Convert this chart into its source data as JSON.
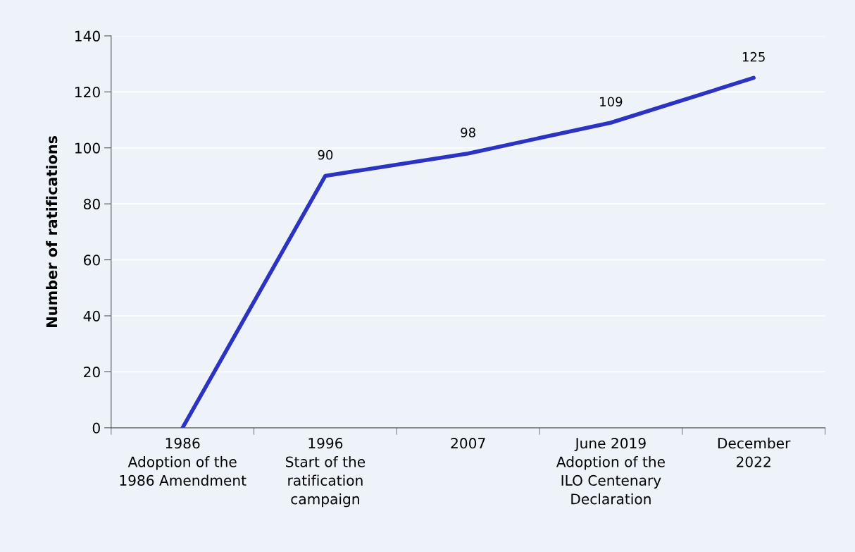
{
  "chart_data": {
    "type": "line",
    "ylabel": "Number of ratifications",
    "categories": [
      "1986\nAdoption of the\n1986 Amendment",
      "1996\nStart of the\nratification\ncampaign",
      "2007",
      "June 2019\nAdoption of the\nILO Centenary\nDeclaration",
      "December\n2022"
    ],
    "series": [
      {
        "color": "#2c33c2",
        "values": [
          0,
          90,
          98,
          109,
          125
        ],
        "value_labels": [
          null,
          "90",
          "98",
          "109",
          "125"
        ]
      }
    ],
    "ylim": [
      0,
      140
    ],
    "yticks": [
      0,
      20,
      40,
      60,
      80,
      100,
      120,
      140
    ],
    "grid": "y",
    "marker": "none",
    "line_style": "solid",
    "legend": false
  }
}
